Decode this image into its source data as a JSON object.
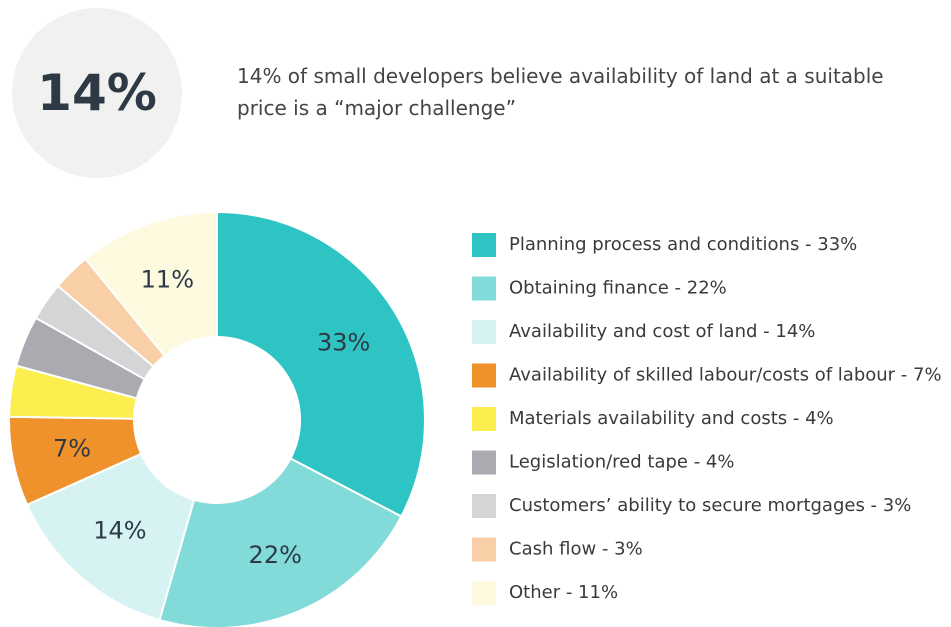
{
  "header": {
    "stat": "14%",
    "text": "14% of small developers believe availability of land at a suitable price is a “major challenge”"
  },
  "chart_data": {
    "type": "donut",
    "categories": [
      "Planning process and conditions - 33%",
      "Obtaining finance - 22%",
      "Availability and cost of land - 14%",
      "Availability of skilled labour/costs of labour - 7%",
      "Materials availability and costs - 4%",
      "Legislation/red tape - 4%",
      "Customers’ ability to secure mortgages - 3%",
      "Cash flow - 3%",
      "Other - 11%"
    ],
    "values": [
      33,
      22,
      14,
      7,
      4,
      4,
      3,
      3,
      11
    ],
    "value_labels": [
      "33%",
      "22%",
      "14%",
      "7%",
      null,
      null,
      null,
      null,
      "11%"
    ],
    "colors": [
      "#2ec4c3",
      "#82dbd9",
      "#d6f2f2",
      "#f0922b",
      "#fcee4f",
      "#a9abb0",
      "#d4d5d7",
      "#f9cfa7",
      "#fefae0"
    ]
  }
}
